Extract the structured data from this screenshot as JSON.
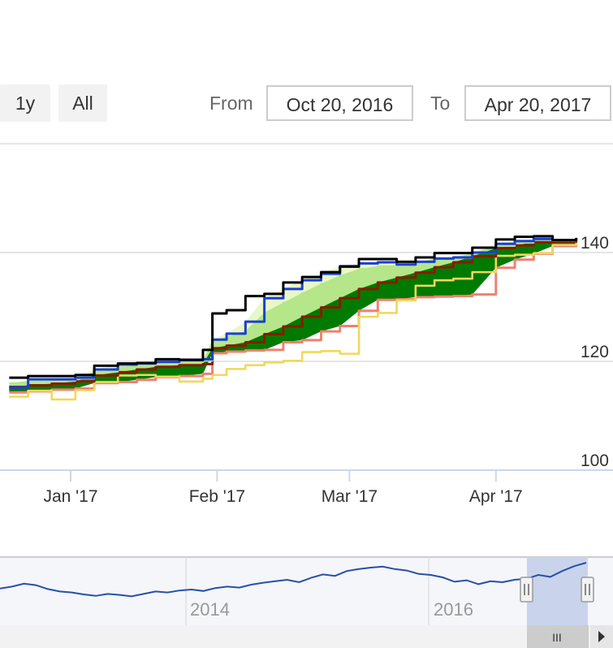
{
  "range_selector": {
    "buttons": [
      "1y",
      "All"
    ],
    "from_label": "From",
    "to_label": "To",
    "from_value": "Oct 20, 2016",
    "to_value": "Apr 20, 2017"
  },
  "navigator": {
    "x_labels": [
      "2014",
      "2016"
    ],
    "scroll_grip": "III"
  },
  "colors": {
    "black": "#000000",
    "blue": "#1a3fd6",
    "darkred": "#8b1a00",
    "salmon": "#f08070",
    "yellow": "#f0d85a",
    "green": "#007a00",
    "lightgreen": "#b5e68a",
    "nav_line": "#2a4fa8",
    "nav_mask": "#c9d4ec"
  },
  "chart_data": {
    "type": "line",
    "x_ticks": [
      "Jan '17",
      "Feb '17",
      "Mar '17",
      "Apr '17"
    ],
    "y_ticks": [
      100,
      120,
      140
    ],
    "ylim": [
      100,
      141
    ],
    "grid": true,
    "x_dates": [
      "2016-12-19",
      "2016-12-23",
      "2016-12-28",
      "2017-01-02",
      "2017-01-06",
      "2017-01-11",
      "2017-01-15",
      "2017-01-19",
      "2017-01-24",
      "2017-01-29",
      "2017-01-31",
      "2017-02-03",
      "2017-02-07",
      "2017-02-11",
      "2017-02-15",
      "2017-02-19",
      "2017-02-23",
      "2017-02-27",
      "2017-03-03",
      "2017-03-07",
      "2017-03-11",
      "2017-03-15",
      "2017-03-19",
      "2017-03-23",
      "2017-03-27",
      "2017-04-01",
      "2017-04-05",
      "2017-04-09",
      "2017-04-13",
      "2017-04-18"
    ],
    "series": [
      {
        "color": "black",
        "values": [
          117.0,
          117.3,
          117.3,
          117.5,
          119.2,
          119.6,
          119.7,
          120.4,
          120.3,
          122.1,
          128.8,
          129.4,
          132.0,
          132.4,
          134.5,
          135.5,
          136.4,
          137.4,
          138.8,
          138.8,
          138.3,
          139.1,
          139.9,
          139.9,
          140.9,
          142.4,
          142.9,
          143.0,
          142.3,
          142.7
        ]
      },
      {
        "color": "blue",
        "values": [
          115.2,
          116.7,
          116.7,
          117.0,
          118.5,
          119.4,
          119.6,
          119.9,
          120.2,
          120.4,
          124.0,
          125.1,
          127.3,
          131.6,
          133.3,
          134.9,
          136.1,
          137.5,
          138.0,
          138.2,
          137.8,
          138.3,
          138.9,
          139.1,
          140.0,
          141.6,
          142.1,
          142.5,
          142.2,
          142.2
        ]
      },
      {
        "color": "lightgreen",
        "values": [
          116.0,
          116.4,
          116.4,
          116.8,
          118.1,
          118.9,
          119.3,
          119.7,
          119.9,
          120.1,
          123.8,
          124.5,
          125.6,
          129.0,
          130.8,
          132.6,
          134.3,
          135.8,
          137.0,
          137.5,
          137.6,
          138.1,
          138.9,
          139.0,
          139.9,
          141.2,
          141.8,
          142.3,
          142.1,
          142.1
        ]
      },
      {
        "color": "darkred",
        "values": [
          115.3,
          115.6,
          115.9,
          116.3,
          117.4,
          118.0,
          118.5,
          119.0,
          119.3,
          119.5,
          122.4,
          122.9,
          123.5,
          125.0,
          126.4,
          128.2,
          129.9,
          131.6,
          133.3,
          134.5,
          135.4,
          136.3,
          137.3,
          138.2,
          139.3,
          140.8,
          141.3,
          141.9,
          142.0,
          142.1
        ]
      },
      {
        "color": "salmon",
        "values": [
          114.3,
          114.5,
          114.8,
          115.0,
          116.0,
          116.2,
          116.6,
          117.1,
          117.3,
          117.7,
          121.5,
          121.8,
          122.0,
          122.1,
          123.5,
          123.9,
          125.5,
          126.5,
          129.3,
          131.3,
          131.4,
          131.8,
          131.9,
          132.0,
          132.3,
          137.2,
          138.7,
          139.8,
          141.2,
          141.4
        ]
      },
      {
        "color": "yellow",
        "values": [
          113.5,
          114.6,
          113.0,
          114.7,
          116.2,
          117.4,
          117.5,
          117.2,
          116.3,
          116.8,
          117.5,
          118.6,
          119.3,
          119.8,
          120.1,
          121.7,
          121.9,
          121.4,
          128.2,
          128.9,
          131.2,
          133.9,
          134.9,
          135.2,
          136.4,
          139.4,
          139.6,
          139.9,
          141.4,
          141.9
        ]
      }
    ]
  }
}
